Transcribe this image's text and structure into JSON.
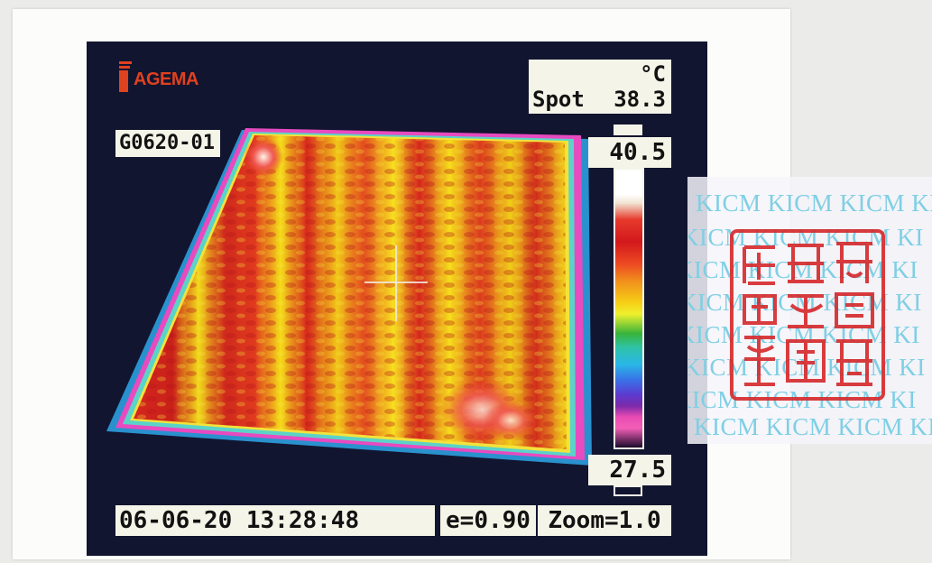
{
  "logo": {
    "text": "AGEMA",
    "color": "#e0411f"
  },
  "readout": {
    "unit": "°C",
    "spot_label": "Spot",
    "spot_value": "38.3"
  },
  "image_id": "G0620-01",
  "scale": {
    "max": "40.5",
    "min": "27.5"
  },
  "footer": {
    "datetime": "06-06-20 13:28:48",
    "emissivity": "e=0.90",
    "zoom": "Zoom=1.0"
  },
  "sticker": {
    "text": "KICM KICM KICM KI",
    "color": "#7fcfe4"
  },
  "seal": {
    "color": "#d6282a"
  },
  "colors": {
    "background": "#12152f",
    "label_box": "#f4f4e8",
    "hot": "#d3181c",
    "warm": "#f6d116"
  }
}
